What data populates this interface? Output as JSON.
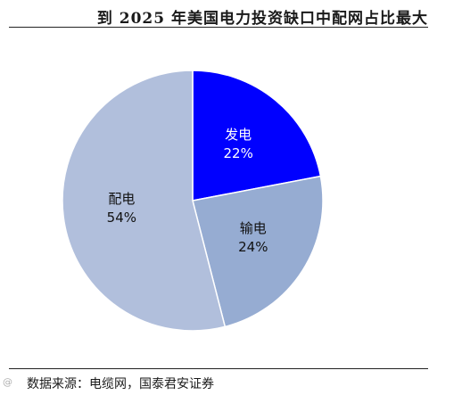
{
  "title": "到 2025 年美国电力投资缺口中配网占比最大",
  "source": "数据来源：电缆网，国泰君安证券",
  "watermark": "@",
  "chart_data": {
    "type": "pie",
    "title": "到 2025 年美国电力投资缺口中配网占比最大",
    "start_angle_deg": 0,
    "direction": "clockwise",
    "slices": [
      {
        "name": "发电",
        "value": 22,
        "label": "22%",
        "color": "#0000ff",
        "text_color": "#ffffff"
      },
      {
        "name": "输电",
        "value": 24,
        "label": "24%",
        "color": "#96acd2",
        "text_color": "#111111"
      },
      {
        "name": "配电",
        "value": 54,
        "label": "54%",
        "color": "#b1bfdc",
        "text_color": "#111111"
      }
    ]
  }
}
